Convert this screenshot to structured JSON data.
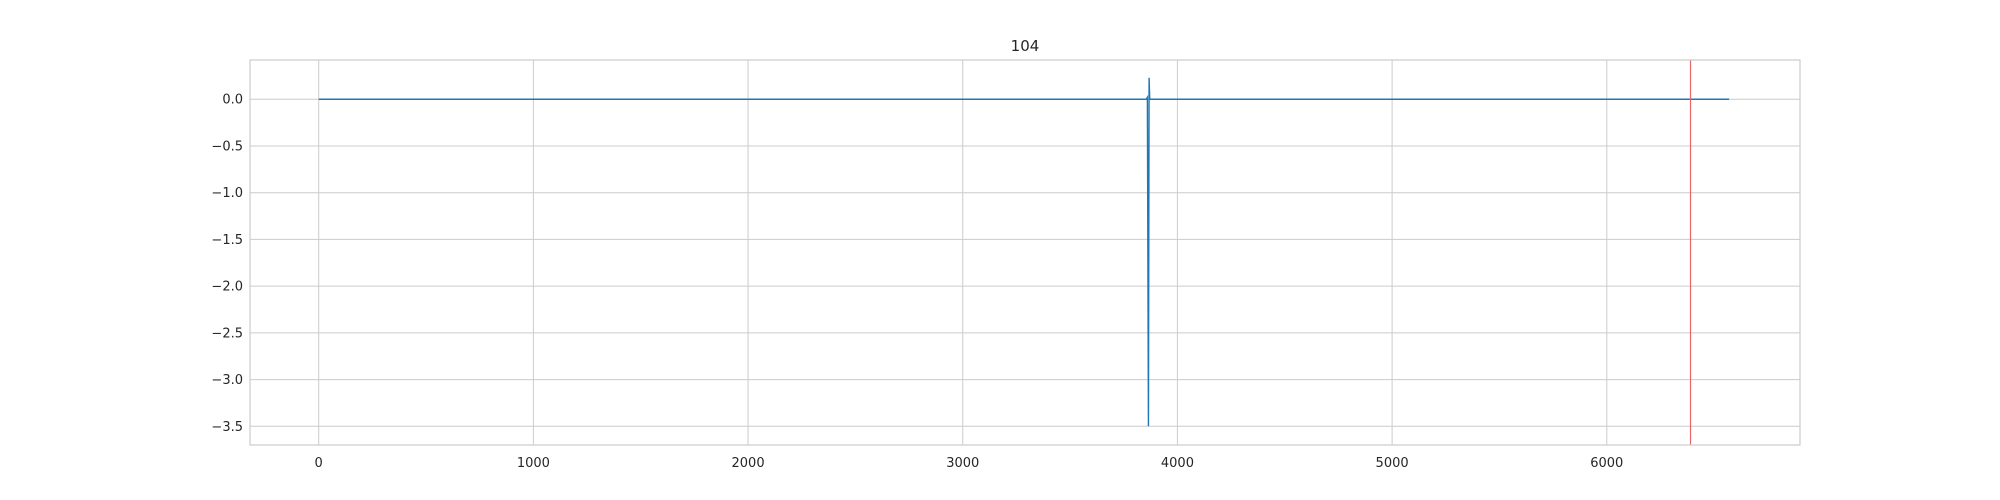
{
  "chart_data": {
    "type": "line",
    "title": "104",
    "xlabel": "",
    "ylabel": "",
    "xlim": [
      -320,
      6900
    ],
    "ylim": [
      -3.7,
      0.42
    ],
    "x_ticks": [
      0,
      1000,
      2000,
      3000,
      4000,
      5000,
      6000
    ],
    "x_tick_labels": [
      "0",
      "1000",
      "2000",
      "3000",
      "4000",
      "5000",
      "6000"
    ],
    "y_ticks": [
      0.0,
      -0.5,
      -1.0,
      -1.5,
      -2.0,
      -2.5,
      -3.0,
      -3.5
    ],
    "y_tick_labels": [
      "0.0",
      "−0.5",
      "−1.0",
      "−1.5",
      "−2.0",
      "−2.5",
      "−3.0",
      "−3.5"
    ],
    "grid": true,
    "legend": "none",
    "series": [
      {
        "color": "#1f77b4",
        "x": [
          0,
          3855,
          3860,
          3865,
          3868,
          3871,
          6570
        ],
        "y": [
          0.0,
          0.0,
          0.02,
          -3.5,
          0.23,
          0.0,
          0.0
        ]
      }
    ],
    "vlines": [
      {
        "x": 6390,
        "color": "#e8656a"
      }
    ]
  },
  "colors": {
    "background": "#ffffff",
    "grid": "#cccccc",
    "frame": "#cccccc",
    "text": "#262626"
  }
}
